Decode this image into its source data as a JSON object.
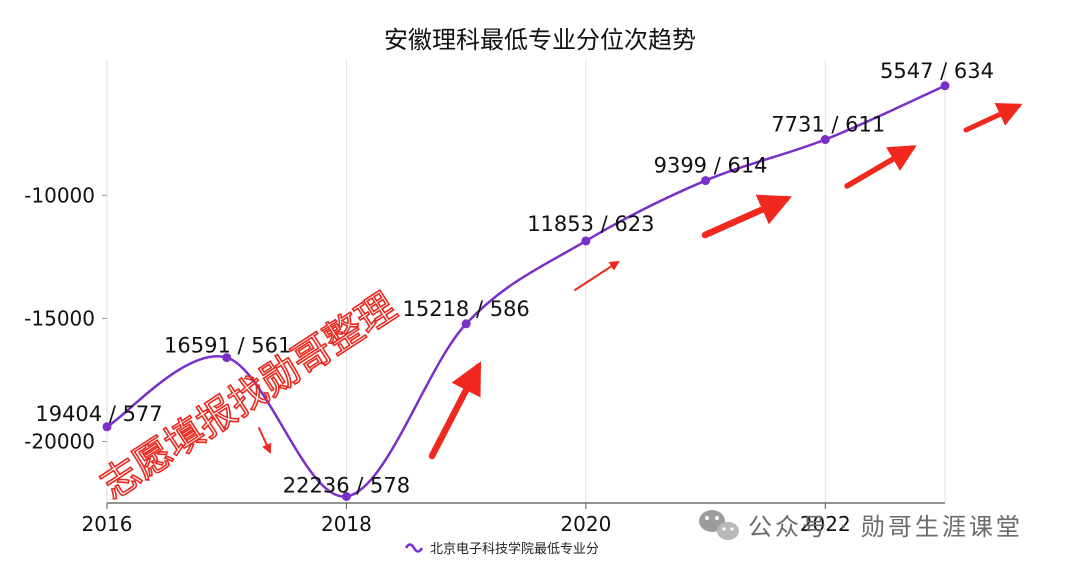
{
  "chart_data": {
    "type": "line",
    "title": "安徽理科最低专业分位次趋势",
    "x": [
      2016,
      2017,
      2018,
      2019,
      2020,
      2021,
      2022,
      2023
    ],
    "series": [
      {
        "name": "北京电子科技学院最低专业分",
        "y": [
          -19404,
          -16591,
          -22236,
          -15218,
          -11853,
          -9399,
          -7731,
          -5547
        ],
        "labels": [
          "19404 / 577",
          "16591 / 561",
          "22236 / 578",
          "15218 / 586",
          "11853 / 623",
          "9399 / 614",
          "7731 / 611",
          "5547 / 634"
        ],
        "color": "#7b2fc9"
      }
    ],
    "xticks": [
      "2016",
      "2018",
      "2020",
      "2022"
    ],
    "yticks": [
      "-10000",
      "-15000",
      "-20000"
    ],
    "xlim": [
      2016,
      2023
    ],
    "ylim": [
      -22500,
      -4500
    ],
    "grid": "vertical",
    "legend_position": "bottom-center",
    "curve": "smooth"
  },
  "watermark": {
    "text": "志愿填报找勋哥整理",
    "color": "#e8281e"
  },
  "wechat_badge": {
    "text": "公众号 · 勋哥生涯课堂",
    "icon": "wechat-icon"
  },
  "arrow_color": "#f0281e"
}
